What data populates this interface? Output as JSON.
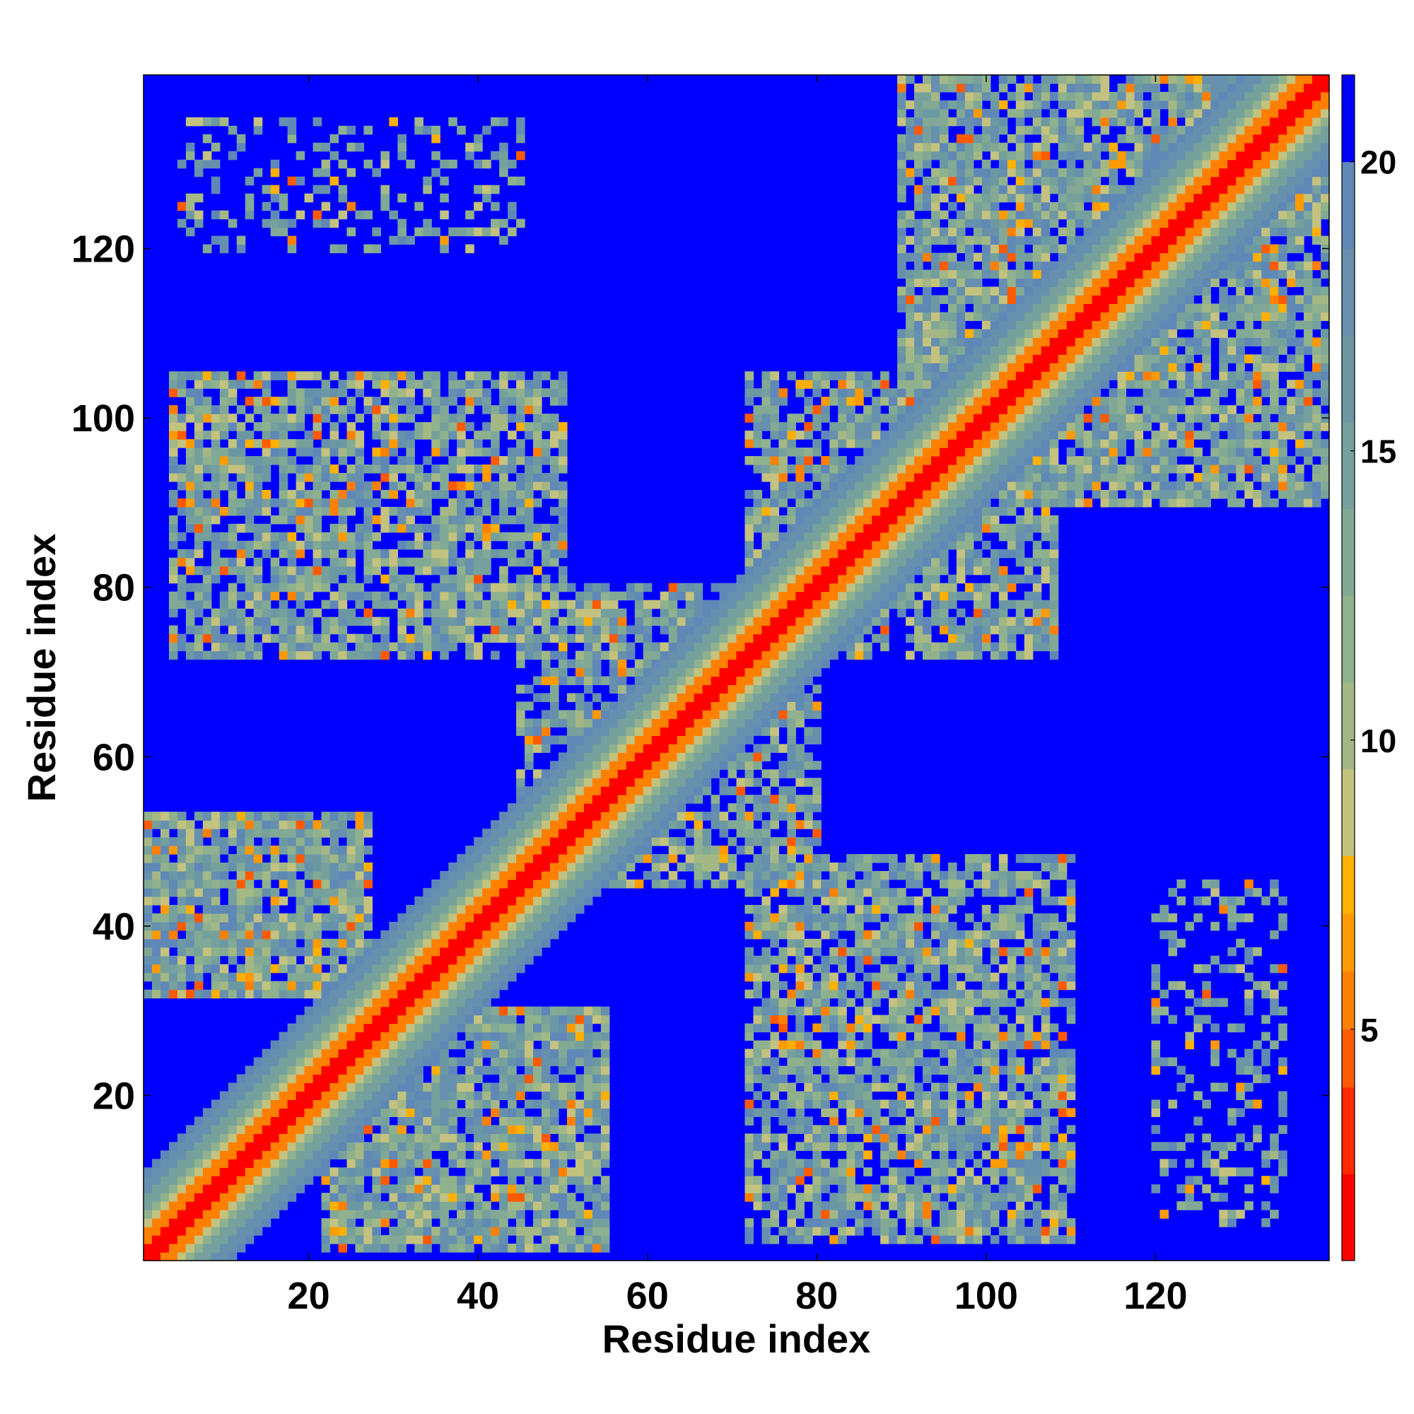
{
  "chart_data": {
    "type": "heatmap",
    "title": "",
    "xlabel": "Residue index",
    "ylabel": "Residue index",
    "xlim": [
      1,
      140
    ],
    "ylim": [
      1,
      140
    ],
    "x_ticks": [
      20,
      40,
      60,
      80,
      100,
      120
    ],
    "y_ticks": [
      20,
      40,
      60,
      80,
      100,
      120
    ],
    "colorbar": {
      "range": [
        1,
        21.5
      ],
      "ticks": [
        5,
        10,
        15,
        20
      ],
      "bands": [
        {
          "from": 1.0,
          "to": 2.5,
          "color": "#ff0000"
        },
        {
          "from": 2.5,
          "to": 4.0,
          "color": "#ff2a00"
        },
        {
          "from": 4.0,
          "to": 5.0,
          "color": "#ff5a00"
        },
        {
          "from": 5.0,
          "to": 6.0,
          "color": "#ff8000"
        },
        {
          "from": 6.0,
          "to": 7.0,
          "color": "#ff9a00"
        },
        {
          "from": 7.0,
          "to": 8.0,
          "color": "#ffb000"
        },
        {
          "from": 8.0,
          "to": 9.5,
          "color": "#c4c27f"
        },
        {
          "from": 9.5,
          "to": 11.0,
          "color": "#a4b886"
        },
        {
          "from": 11.0,
          "to": 12.5,
          "color": "#8fb18d"
        },
        {
          "from": 12.5,
          "to": 14.0,
          "color": "#82a995"
        },
        {
          "from": 14.0,
          "to": 15.5,
          "color": "#76a09c"
        },
        {
          "from": 15.5,
          "to": 17.0,
          "color": "#6c98a4"
        },
        {
          "from": 17.0,
          "to": 18.5,
          "color": "#6690ad"
        },
        {
          "from": 18.5,
          "to": 20.0,
          "color": "#5f88b7"
        },
        {
          "from": 20.0,
          "to": 21.5,
          "color": "#0000ff"
        }
      ]
    },
    "cutoff": 20,
    "diagonal_band": [
      {
        "max_offset": 1,
        "value": 2
      },
      {
        "max_offset": 3,
        "value": 5.5
      },
      {
        "max_offset": 4,
        "value": 9
      },
      {
        "max_offset": 5,
        "value": 11.5
      },
      {
        "max_offset": 7,
        "value": 14.5
      },
      {
        "max_offset": 9,
        "value": 17.5
      },
      {
        "max_offset": 10,
        "value": 19
      }
    ],
    "contact_regions": [
      {
        "x": [
          1,
          27
        ],
        "y": [
          32,
          53
        ],
        "density": 0.9
      },
      {
        "x": [
          22,
          55
        ],
        "y": [
          2,
          30
        ],
        "density": 0.9
      },
      {
        "x": [
          4,
          50
        ],
        "y": [
          72,
          105
        ],
        "density": 0.75
      },
      {
        "x": [
          72,
          110
        ],
        "y": [
          3,
          48
        ],
        "density": 0.75
      },
      {
        "x": [
          72,
          108
        ],
        "y": [
          72,
          105
        ],
        "density": 0.75
      },
      {
        "x": [
          45,
          80
        ],
        "y": [
          45,
          80
        ],
        "density": 0.7
      },
      {
        "x": [
          90,
          140
        ],
        "y": [
          90,
          140
        ],
        "density": 0.85
      },
      {
        "x": [
          5,
          45
        ],
        "y": [
          120,
          135
        ],
        "density": 0.3
      },
      {
        "x": [
          120,
          135
        ],
        "y": [
          5,
          45
        ],
        "density": 0.3
      }
    ]
  }
}
